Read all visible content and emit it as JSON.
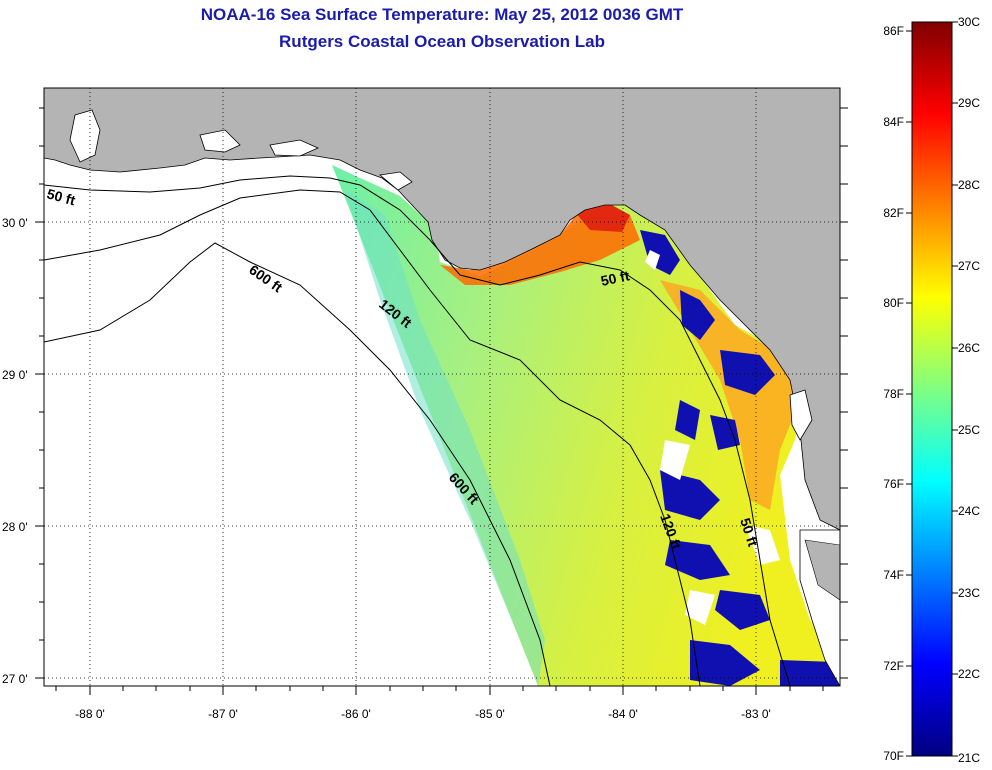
{
  "title": {
    "line1": "NOAA-16 Sea Surface Temperature:  May 25, 2012 0036 GMT",
    "line2": "Rutgers Coastal Ocean Observation Lab"
  },
  "map": {
    "lon_ticks": [
      "-88 0'",
      "-87 0'",
      "-86 0'",
      "-85 0'",
      "-84 0'",
      "-83 0'"
    ],
    "lat_ticks": [
      "30 0'",
      "29 0'",
      "28 0'",
      "27 0'"
    ],
    "contours": [
      "50 ft",
      "120 ft",
      "600 ft",
      "600 ft",
      "50 ft",
      "120 ft",
      "50 ft"
    ]
  },
  "colorbar": {
    "fahrenheit": [
      "86F",
      "84F",
      "82F",
      "80F",
      "78F",
      "76F",
      "74F",
      "72F",
      "70F"
    ],
    "celsius": [
      "30C",
      "29C",
      "28C",
      "27C",
      "26C",
      "25C",
      "24C",
      "23C",
      "22C",
      "21C"
    ],
    "colors": [
      "#800000",
      "#ff0000",
      "#ff8000",
      "#ffff00",
      "#80ff80",
      "#00ffff",
      "#0080ff",
      "#0000ff",
      "#000080"
    ]
  },
  "colors": {
    "land": "#b4b4b4",
    "title": "#1c1caa",
    "ocean": "#ffffff"
  }
}
